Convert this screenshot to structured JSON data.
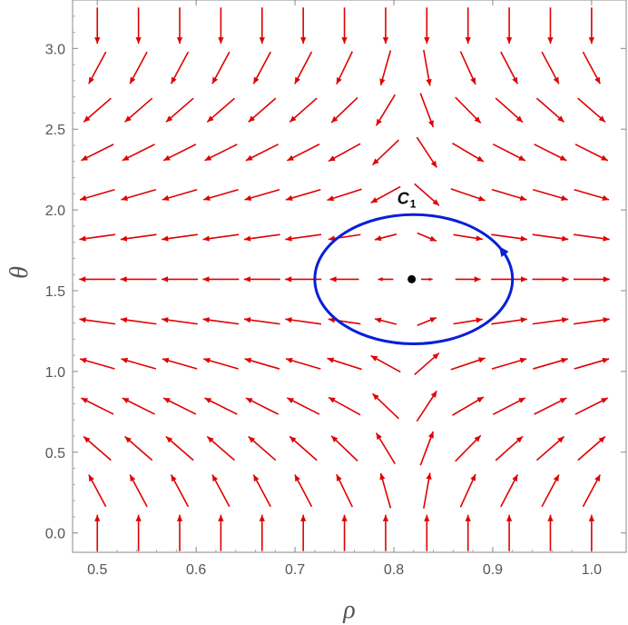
{
  "chart_data": {
    "type": "vector-field",
    "xlabel": "ρ",
    "ylabel": "θ",
    "xlim": [
      0.475,
      1.035
    ],
    "ylim": [
      -0.12,
      3.3
    ],
    "xticks": [
      0.5,
      0.6,
      0.7,
      0.8,
      0.9,
      1.0
    ],
    "xtick_labels": [
      "0.5",
      "0.6",
      "0.7",
      "0.8",
      "0.9",
      "1.0"
    ],
    "yticks": [
      0.0,
      0.5,
      1.0,
      1.5,
      2.0,
      2.5,
      3.0
    ],
    "ytick_labels": [
      "0.0",
      "0.5",
      "1.0",
      "1.5",
      "2.0",
      "2.5",
      "3.0"
    ],
    "grid": false,
    "field": {
      "color": "#e00000",
      "description": "vector field n = (n_rho, n_theta) sampled on a 13x13 grid",
      "rho_range": [
        0.5,
        1.0
      ],
      "theta_range": [
        0.0,
        3.1416
      ],
      "samples": 13,
      "zero_point": [
        0.818,
        1.571
      ]
    },
    "zero_point": {
      "rho": 0.818,
      "theta": 1.571,
      "color": "#000000"
    },
    "contour": {
      "label": "C",
      "label_sub": "1",
      "center": [
        0.82,
        1.571
      ],
      "radius_rho": 0.1,
      "radius_theta": 0.4,
      "color": "#0a1fd6",
      "direction": "counterclockwise"
    }
  }
}
